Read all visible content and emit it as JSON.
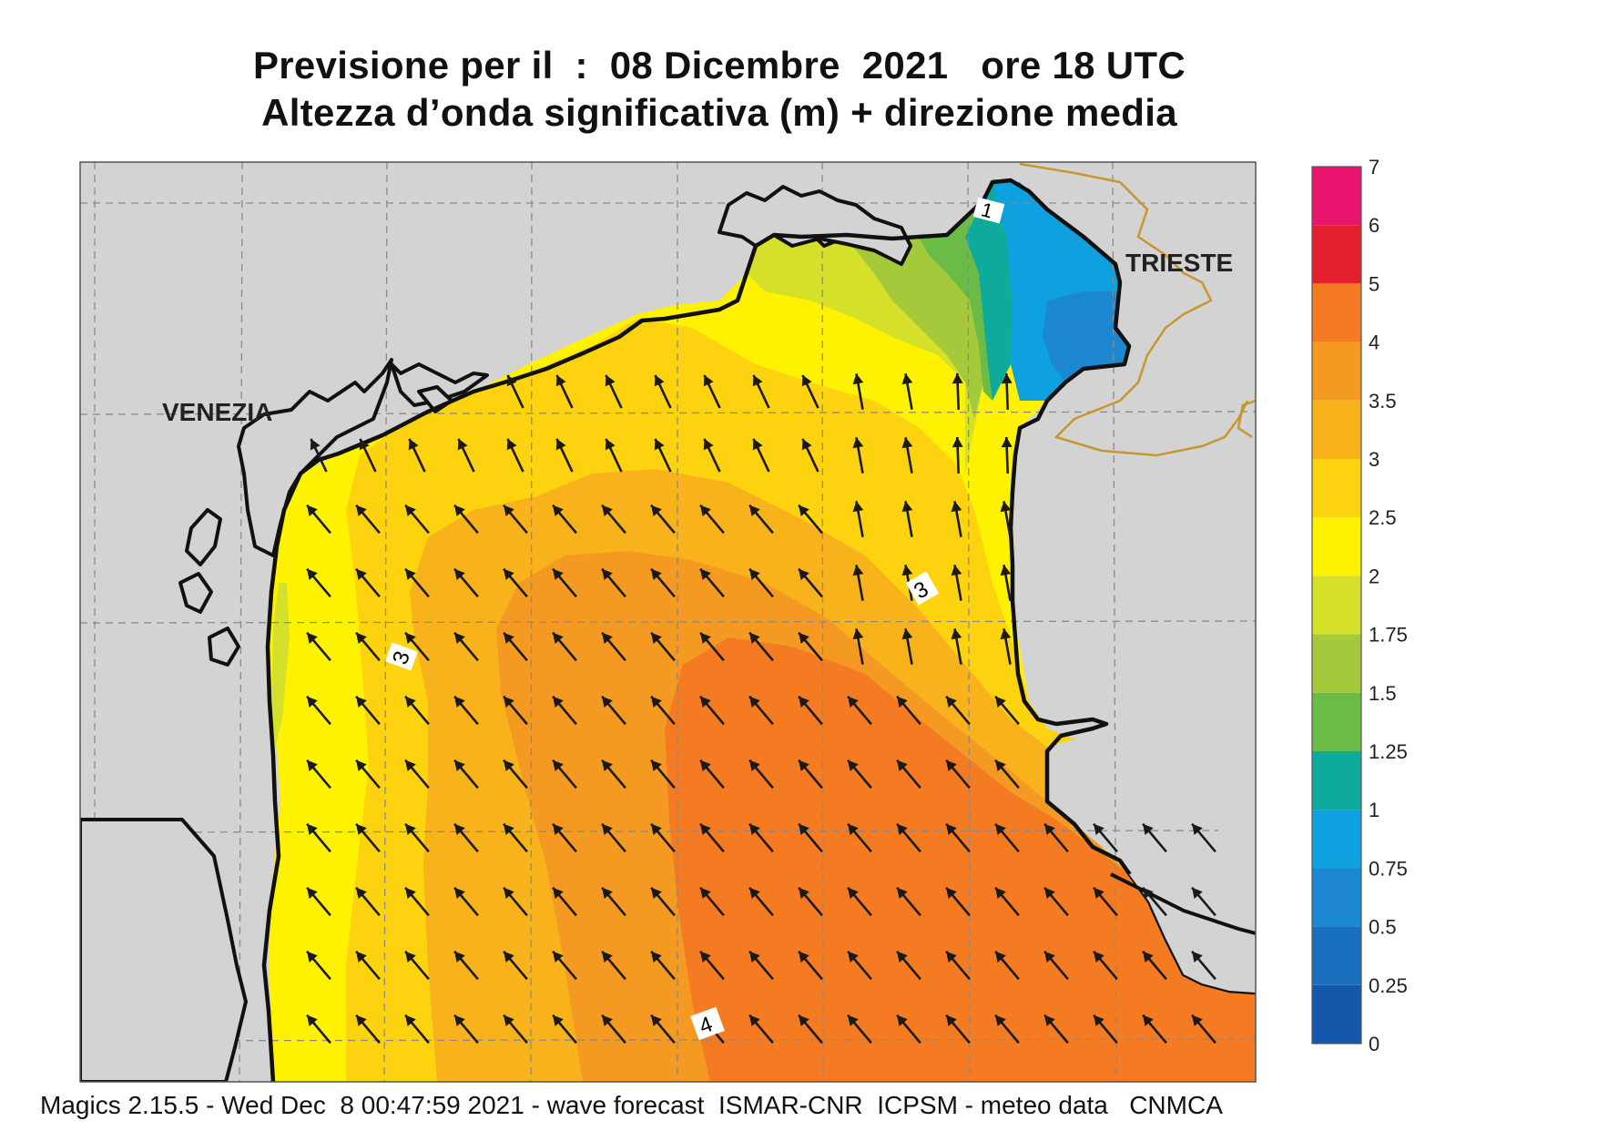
{
  "header": {
    "title_line1": "Previsione per il  :  08 Dicembre  2021   ore 18 UTC",
    "title_line2": "Altezza d’onda significativa (m) + direzione media"
  },
  "places": {
    "venezia": "VENEZIA",
    "trieste": "TRIESTE"
  },
  "contour_labels": {
    "c1": "1",
    "c3a": "3",
    "c3b": "3",
    "c4": "4"
  },
  "legend": {
    "title": "",
    "levels": [
      "7",
      "6",
      "5",
      "4",
      "3.5",
      "3",
      "2.5",
      "2",
      "1.75",
      "1.5",
      "1.25",
      "1",
      "0.75",
      "0.5",
      "0.25",
      "0"
    ],
    "colors": [
      "#e8146e",
      "#e5202e",
      "#f47b22",
      "#f49a22",
      "#f7b21c",
      "#fdd20e",
      "#fff200",
      "#d4e02a",
      "#a4c93b",
      "#6bbc47",
      "#0eab9c",
      "#0fa0e0",
      "#1b88d1",
      "#1a6fbf",
      "#1558aa"
    ],
    "range": [
      0,
      7
    ]
  },
  "map_colors": {
    "land": "#d3d3d3",
    "coast": "#111111",
    "border": "#c8962e",
    "grid": "#8a8a8a",
    "arrow": "#1a1a1a"
  },
  "wave_direction": "north-west",
  "footer": "Magics 2.15.5 - Wed Dec  8 00:47:59 2021 - wave forecast  ISMAR-CNR  ICPSM - meteo data   CNMCA"
}
